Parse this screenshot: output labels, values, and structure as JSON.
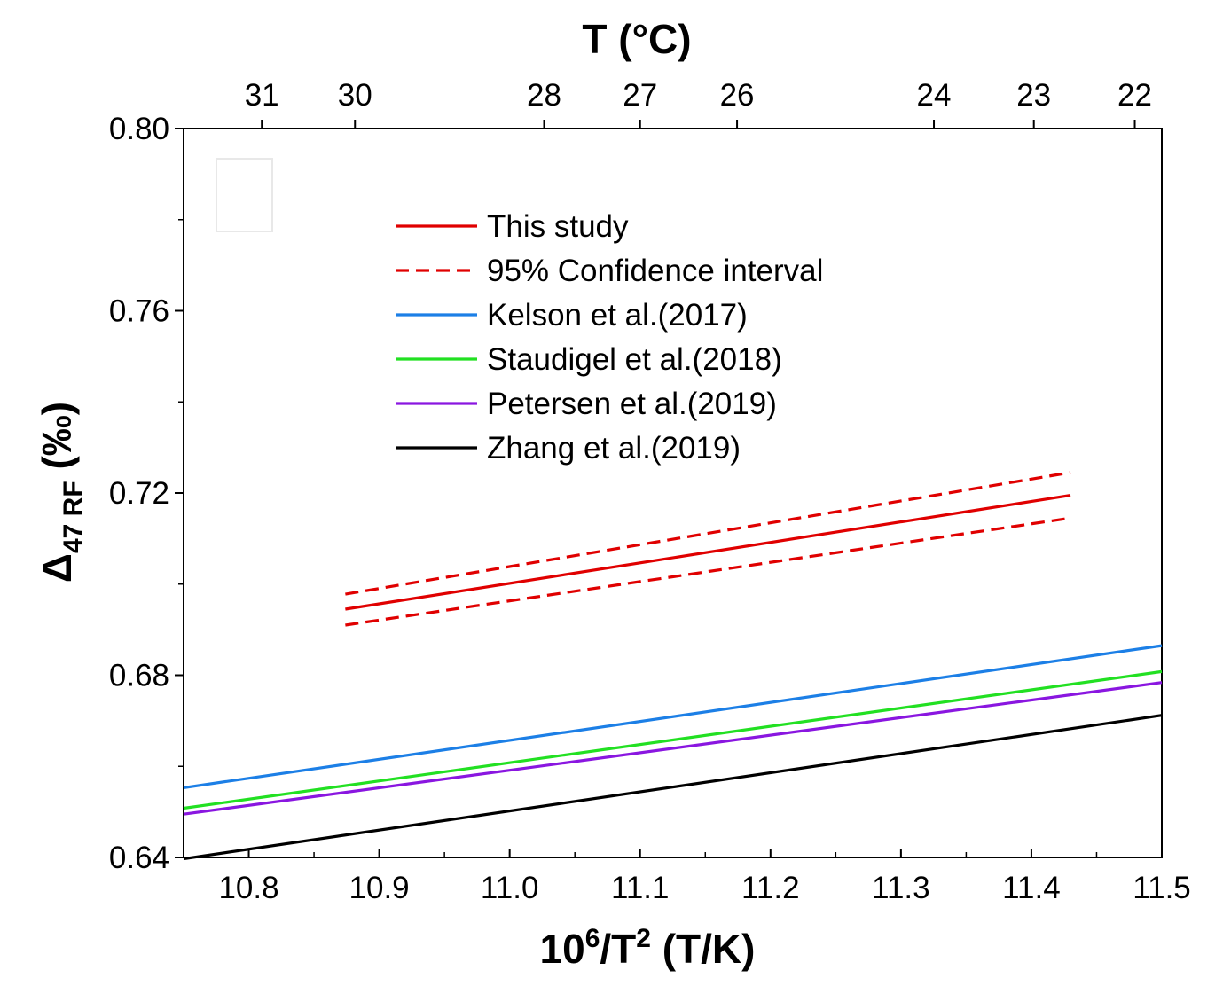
{
  "chart_data": {
    "type": "line",
    "x_axis": {
      "label_base": "10",
      "label_sup1": "6",
      "label_mid": "/T",
      "label_sup2": "2",
      "label_tail": " (T/K)",
      "range": [
        10.75,
        11.5
      ],
      "ticks": [
        10.8,
        10.9,
        11.0,
        11.1,
        11.2,
        11.3,
        11.4,
        11.5
      ],
      "tick_labels": [
        "10.8",
        "10.9",
        "11.0",
        "11.1",
        "11.2",
        "11.3",
        "11.4",
        "11.5"
      ]
    },
    "top_axis": {
      "label": "T (°C)",
      "ticks": [
        31,
        30,
        28,
        27,
        26,
        24,
        23,
        22
      ],
      "tick_labels": [
        "31",
        "30",
        "28",
        "27",
        "26",
        "24",
        "23",
        "22"
      ]
    },
    "y_axis": {
      "label_main": "Δ",
      "label_sub": "47 RF",
      "label_unit": " (‰)",
      "range": [
        0.64,
        0.8
      ],
      "ticks": [
        0.64,
        0.68,
        0.72,
        0.76,
        0.8
      ],
      "tick_labels": [
        "0.64",
        "0.68",
        "0.72",
        "0.76",
        "0.80"
      ]
    },
    "series": [
      {
        "name": "This study",
        "color": "#e00000",
        "dashed": false,
        "x": [
          10.874,
          11.43
        ],
        "y": [
          0.6945,
          0.7195
        ]
      },
      {
        "name": "95% Confidence interval",
        "color": "#e00000",
        "dashed": true,
        "x": [
          10.874,
          11.43
        ],
        "y": [
          0.6978,
          0.7245
        ]
      },
      {
        "name": "",
        "color": "#e00000",
        "dashed": true,
        "x": [
          10.874,
          11.43
        ],
        "y": [
          0.691,
          0.7145
        ]
      },
      {
        "name": "Kelson et al.(2017)",
        "color": "#1c7fe6",
        "dashed": false,
        "x": [
          10.75,
          11.5
        ],
        "y": [
          0.6553,
          0.6865
        ]
      },
      {
        "name": "Staudigel et al.(2018)",
        "color": "#22e022",
        "dashed": false,
        "x": [
          10.75,
          11.5
        ],
        "y": [
          0.6508,
          0.6808
        ]
      },
      {
        "name": "Petersen et al.(2019)",
        "color": "#8a16e0",
        "dashed": false,
        "x": [
          10.75,
          11.5
        ],
        "y": [
          0.6495,
          0.6784
        ]
      },
      {
        "name": "Zhang et al.(2019)",
        "color": "#000000",
        "dashed": false,
        "x": [
          10.75,
          11.5
        ],
        "y": [
          0.6397,
          0.6712
        ]
      }
    ],
    "legend": {
      "position": "top-center",
      "entries": [
        "This study",
        "95% Confidence interval",
        "Kelson et al.(2017)",
        "Staudigel et al.(2018)",
        "Petersen et al.(2019)",
        "Zhang et al.(2019)"
      ]
    },
    "grid": false
  }
}
